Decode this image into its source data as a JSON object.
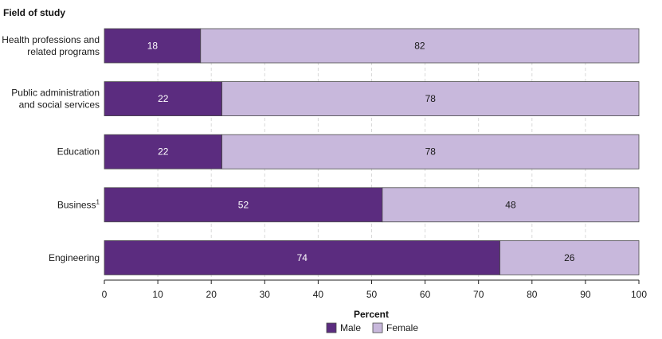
{
  "chart_data": {
    "type": "bar",
    "orientation": "horizontal",
    "stacked": true,
    "ylabel": "Field of study",
    "xlabel": "Percent",
    "xlim": [
      0,
      100
    ],
    "xticks": [
      0,
      10,
      20,
      30,
      40,
      50,
      60,
      70,
      80,
      90,
      100
    ],
    "grid": "vertical dashed",
    "categories": [
      [
        "Health professions and",
        "related programs"
      ],
      [
        "Public administration",
        "and social services"
      ],
      [
        "Education"
      ],
      [
        "Business"
      ],
      [
        "Engineering"
      ]
    ],
    "footnote_markers": [
      "",
      "",
      "",
      "1",
      ""
    ],
    "series": [
      {
        "name": "Male",
        "color": "#5b2c7f",
        "label_color": "#ffffff",
        "values": [
          18,
          22,
          22,
          52,
          74
        ]
      },
      {
        "name": "Female",
        "color": "#c8b8dc",
        "label_color": "#1a1a1a",
        "values": [
          82,
          78,
          78,
          48,
          26
        ]
      }
    ],
    "legend_position": "bottom-center"
  }
}
